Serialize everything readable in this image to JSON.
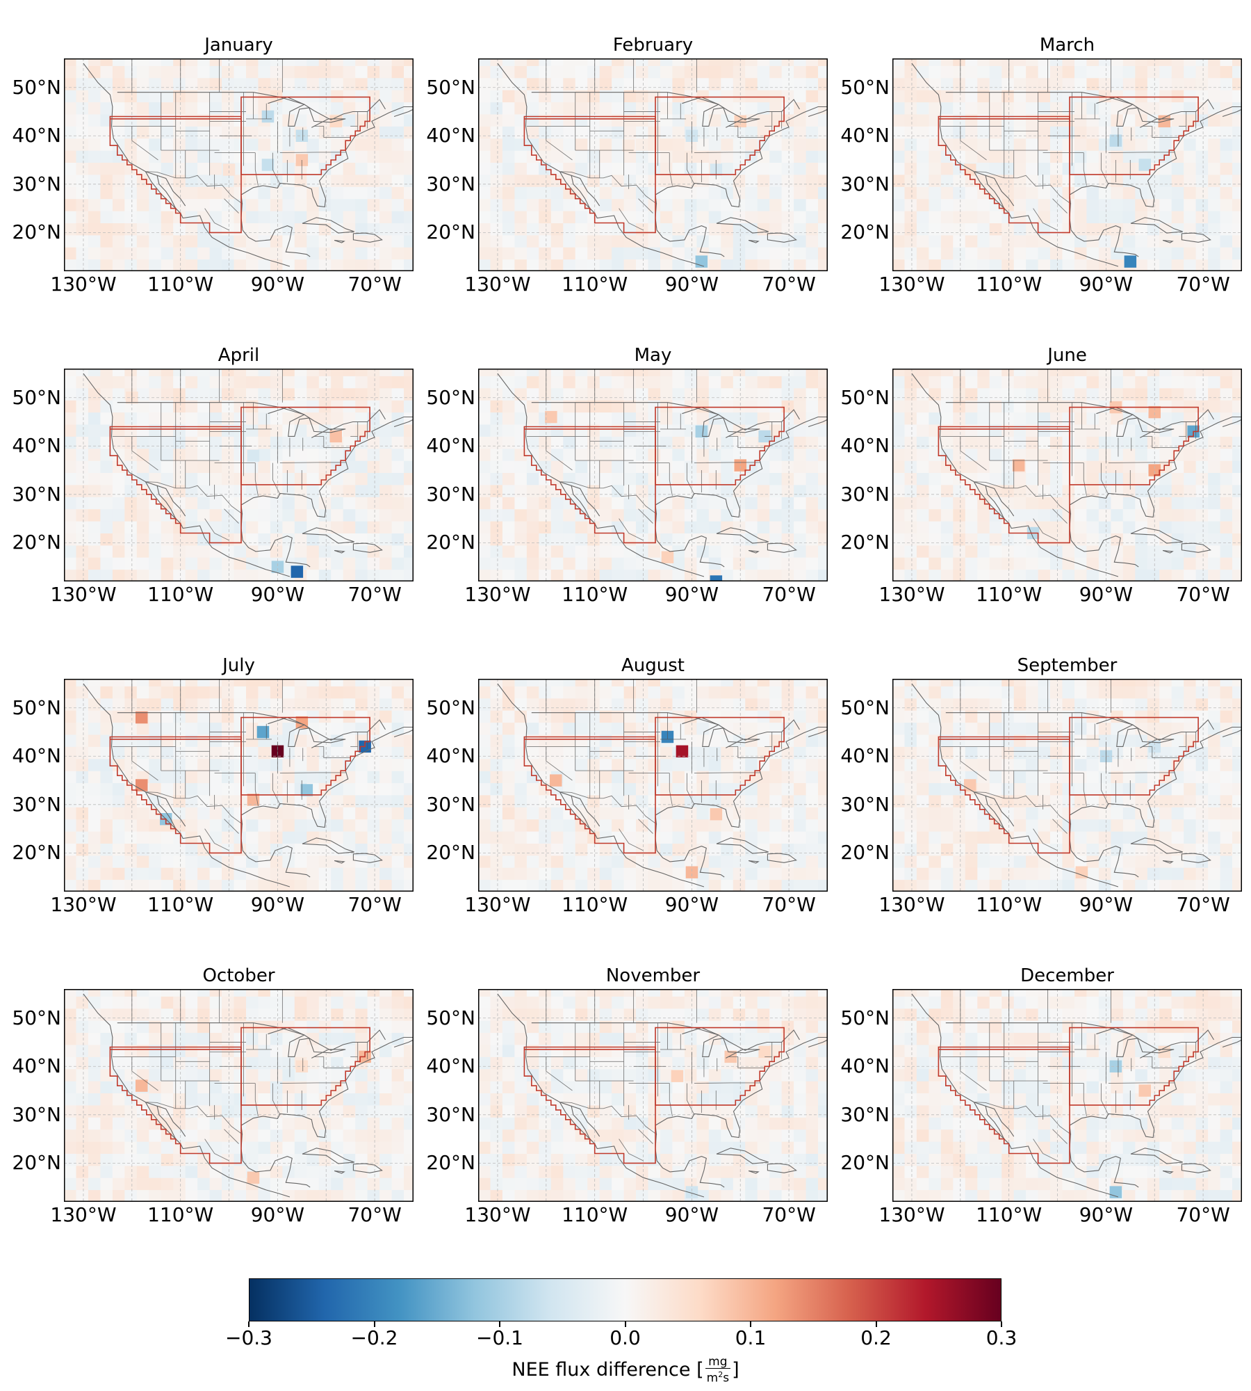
{
  "panels": [
    {
      "title": "January"
    },
    {
      "title": "February"
    },
    {
      "title": "March"
    },
    {
      "title": "April"
    },
    {
      "title": "May"
    },
    {
      "title": "June"
    },
    {
      "title": "July"
    },
    {
      "title": "August"
    },
    {
      "title": "September"
    },
    {
      "title": "October"
    },
    {
      "title": "November"
    },
    {
      "title": "December"
    }
  ],
  "axes": {
    "lat_ticks": [
      "50°N",
      "40°N",
      "30°N",
      "20°N"
    ],
    "lon_ticks": [
      "130°W",
      "110°W",
      "90°W",
      "70°W"
    ],
    "lon_range": [
      -134,
      -62
    ],
    "lat_range": [
      12,
      56
    ]
  },
  "colorbar": {
    "colormap": "RdBu_r",
    "colors": [
      "#053061",
      "#2166ac",
      "#4393c3",
      "#92c5de",
      "#d1e5f0",
      "#f7f7f7",
      "#fddbc7",
      "#f4a582",
      "#d6604d",
      "#b2182b",
      "#67001f"
    ],
    "range": [
      -0.3,
      0.3
    ],
    "tick_labels": [
      "−0.3",
      "−0.2",
      "−0.1",
      "0.0",
      "0.1",
      "0.2",
      "0.3"
    ],
    "label_prefix": "NEE flux difference [",
    "unit_numerator": "mg",
    "unit_denominator_base": "m",
    "unit_denominator_exp": "2",
    "unit_denominator_tail": "s",
    "label_suffix": "]"
  },
  "regions": {
    "outline_color": "#c0392b",
    "west_box_lon": [
      -124.5,
      -97.5
    ],
    "east_box_lon": [
      -97.5,
      -71
    ]
  },
  "anomaly_cells": {
    "January": [
      [
        -92,
        44,
        -0.08
      ],
      [
        -85,
        40,
        -0.07
      ],
      [
        -78,
        43,
        0.06
      ],
      [
        -85,
        35,
        0.08
      ],
      [
        -92,
        34,
        -0.07
      ],
      [
        -100,
        33,
        0.04
      ]
    ],
    "February": [
      [
        -80,
        43,
        0.07
      ],
      [
        -90,
        40,
        -0.06
      ],
      [
        -85,
        33,
        -0.05
      ],
      [
        -88,
        14,
        -0.12
      ],
      [
        -103,
        38,
        0.03
      ]
    ],
    "March": [
      [
        -78,
        43,
        0.1
      ],
      [
        -88,
        39,
        -0.08
      ],
      [
        -82,
        34,
        -0.07
      ],
      [
        -85,
        14,
        -0.2
      ],
      [
        -118,
        33,
        0.05
      ]
    ],
    "April": [
      [
        -78,
        42,
        0.09
      ],
      [
        -95,
        38,
        -0.05
      ],
      [
        -86,
        14,
        -0.24
      ],
      [
        -90,
        15,
        -0.1
      ],
      [
        -120,
        50,
        0.04
      ]
    ],
    "May": [
      [
        -88,
        43,
        -0.1
      ],
      [
        -75,
        42,
        -0.08
      ],
      [
        -80,
        36,
        0.12
      ],
      [
        -119,
        46,
        0.08
      ],
      [
        -85,
        12,
        -0.22
      ],
      [
        -95,
        17,
        0.07
      ]
    ],
    "June": [
      [
        -80,
        47,
        0.1
      ],
      [
        -72,
        43,
        -0.16
      ],
      [
        -80,
        35,
        0.12
      ],
      [
        -108,
        36,
        0.1
      ],
      [
        -105,
        22,
        -0.08
      ],
      [
        -88,
        48,
        0.08
      ]
    ],
    "July": [
      [
        -90,
        41,
        0.3
      ],
      [
        -72,
        42,
        -0.24
      ],
      [
        -93,
        45,
        -0.16
      ],
      [
        -85,
        47,
        0.12
      ],
      [
        -118,
        34,
        0.14
      ],
      [
        -113,
        27,
        -0.12
      ],
      [
        -84,
        33,
        -0.12
      ],
      [
        -95,
        31,
        0.1
      ],
      [
        -118,
        48,
        0.14
      ]
    ],
    "August": [
      [
        -92,
        41,
        0.25
      ],
      [
        -95,
        44,
        -0.2
      ],
      [
        -118,
        35,
        0.1
      ],
      [
        -85,
        28,
        0.08
      ],
      [
        -90,
        16,
        0.1
      ]
    ],
    "September": [
      [
        -90,
        40,
        -0.08
      ],
      [
        -80,
        42,
        -0.06
      ],
      [
        -118,
        34,
        0.08
      ],
      [
        -95,
        16,
        0.07
      ]
    ],
    "October": [
      [
        -72,
        42,
        0.1
      ],
      [
        -118,
        36,
        0.1
      ],
      [
        -95,
        17,
        0.08
      ],
      [
        -85,
        40,
        0.05
      ]
    ],
    "November": [
      [
        -82,
        42,
        0.08
      ],
      [
        -93,
        38,
        0.07
      ],
      [
        -75,
        43,
        0.06
      ],
      [
        -90,
        14,
        -0.06
      ]
    ],
    "December": [
      [
        -88,
        40,
        -0.1
      ],
      [
        -82,
        35,
        0.08
      ],
      [
        -78,
        43,
        0.05
      ],
      [
        -88,
        14,
        -0.12
      ]
    ]
  }
}
